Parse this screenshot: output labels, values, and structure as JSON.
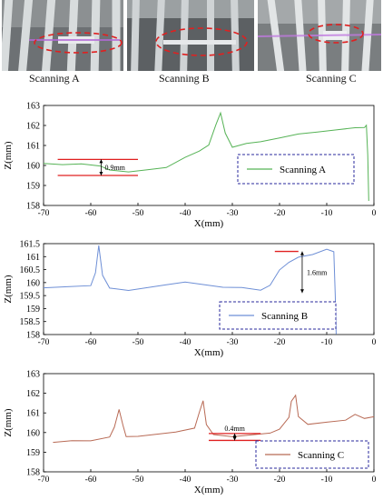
{
  "panels": [
    {
      "caption": "Scanning A",
      "photo_icon": "scan-photo-bars-tilted"
    },
    {
      "caption": "Scanning B",
      "photo_icon": "scan-photo-bars-vertical"
    },
    {
      "caption": "Scanning C",
      "photo_icon": "scan-photo-bars-diagonal"
    }
  ],
  "colors": {
    "highlight_ellipse": "#e02020",
    "series_a": "#56b356",
    "series_b": "#6e8fd6",
    "series_c": "#b86a55",
    "annotation": "#e02020",
    "legend_border": "#2a2a9c"
  },
  "chart_data": [
    {
      "type": "line",
      "xlabel": "X(mm)",
      "ylabel": "Z(mm)",
      "xlim": [
        -70,
        0
      ],
      "ylim": [
        158,
        163
      ],
      "xticks": [
        -70,
        -60,
        -50,
        -40,
        -30,
        -20,
        -10,
        0
      ],
      "yticks": [
        158,
        159,
        160,
        161,
        162,
        163
      ],
      "ytick_labels": [
        "158",
        "159",
        "160",
        "161",
        "162",
        "163"
      ],
      "legend": "center-right",
      "series": [
        {
          "name": "Scanning A",
          "x": [
            -70,
            -66,
            -62,
            -58,
            -56,
            -52,
            -48,
            -44,
            -40,
            -37,
            -35,
            -33.5,
            -32.5,
            -31.5,
            -30,
            -27,
            -24,
            -20,
            -16,
            -12,
            -8,
            -4,
            -2,
            -1.6,
            -1.3,
            -1.1
          ],
          "y": [
            160.1,
            160.05,
            160.1,
            160.0,
            159.8,
            159.7,
            159.8,
            159.9,
            160.4,
            160.7,
            161.0,
            162.0,
            162.6,
            161.6,
            160.9,
            161.1,
            161.2,
            161.4,
            161.6,
            161.7,
            161.8,
            161.9,
            161.9,
            162.0,
            160.5,
            158.2
          ]
        }
      ],
      "annotations": [
        {
          "text": "0.9mm",
          "x": -57.5,
          "y": 160.0
        }
      ]
    },
    {
      "type": "line",
      "xlabel": "X(mm)",
      "ylabel": "Z(mm)",
      "xlim": [
        -70,
        0
      ],
      "ylim": [
        158,
        161.5
      ],
      "xticks": [
        -70,
        -60,
        -50,
        -40,
        -30,
        -20,
        -10,
        0
      ],
      "yticks": [
        158,
        158.5,
        159,
        159.5,
        160,
        160.5,
        161,
        161.5
      ],
      "ytick_labels": [
        "158",
        "158.5",
        "159",
        "159.5",
        "160",
        "160.5",
        "161",
        "161.5"
      ],
      "legend": "center-right",
      "series": [
        {
          "name": "Scanning B",
          "x": [
            -70,
            -65,
            -60,
            -59,
            -58.3,
            -57.5,
            -56,
            -52,
            -48,
            -44,
            -40,
            -36,
            -32,
            -28,
            -24,
            -22,
            -20,
            -18,
            -16,
            -13,
            -10,
            -8.5,
            -8.2,
            -8
          ],
          "y": [
            159.8,
            159.85,
            159.9,
            160.4,
            161.45,
            160.3,
            159.8,
            159.7,
            159.8,
            159.9,
            160.0,
            159.9,
            159.8,
            159.8,
            159.7,
            159.9,
            160.5,
            160.8,
            161.0,
            161.1,
            161.3,
            161.2,
            159.5,
            158.0
          ]
        }
      ],
      "annotations": [
        {
          "text": "1.6mm",
          "x": -15,
          "y": 160.3
        }
      ]
    },
    {
      "type": "line",
      "xlabel": "X(mm)",
      "ylabel": "Z(mm)",
      "xlim": [
        -70,
        0
      ],
      "ylim": [
        158,
        163
      ],
      "xticks": [
        -70,
        -60,
        -50,
        -40,
        -30,
        -20,
        -10,
        0
      ],
      "yticks": [
        158,
        159,
        160,
        161,
        162,
        163
      ],
      "ytick_labels": [
        "158",
        "159",
        "160",
        "161",
        "162",
        "163"
      ],
      "legend": "lower-right",
      "series": [
        {
          "name": "Scanning C",
          "x": [
            -68,
            -64,
            -60,
            -56,
            -55,
            -54,
            -53.2,
            -52.5,
            -50,
            -46,
            -42,
            -38,
            -37,
            -36.2,
            -35.5,
            -34,
            -30,
            -26,
            -22,
            -20,
            -18,
            -17.5,
            -16.6,
            -16,
            -14,
            -10,
            -6,
            -4,
            -2,
            0
          ],
          "y": [
            159.5,
            159.6,
            159.6,
            159.8,
            160.3,
            161.2,
            160.4,
            159.8,
            159.8,
            159.9,
            160.0,
            160.2,
            161.0,
            161.6,
            160.4,
            159.9,
            159.8,
            159.9,
            160.0,
            160.2,
            160.8,
            161.6,
            161.9,
            160.8,
            160.4,
            160.5,
            160.6,
            160.9,
            160.7,
            160.8
          ]
        }
      ],
      "annotations": [
        {
          "text": "0.4mm",
          "x": -29,
          "y": 160.2
        }
      ]
    }
  ]
}
